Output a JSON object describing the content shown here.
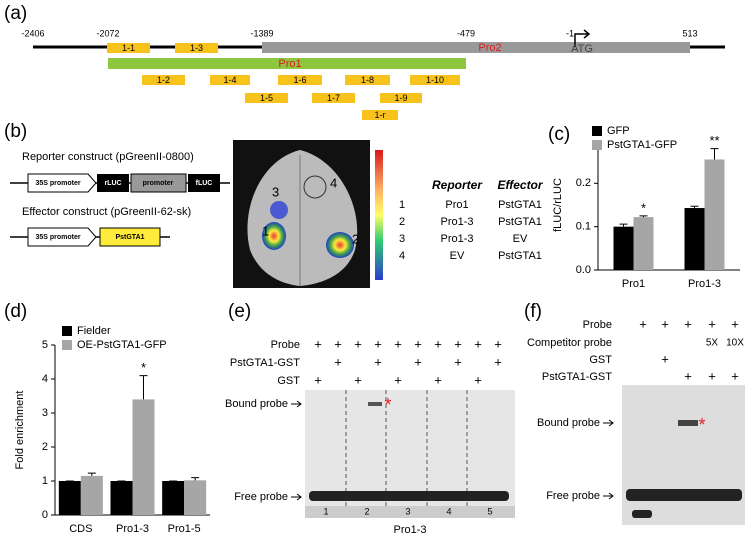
{
  "panels": [
    "(a)",
    "(b)",
    "(c)",
    "(d)",
    "(e)",
    "(f)"
  ],
  "a": {
    "positions": [
      "-2406",
      "-2072",
      "-1389",
      "-479",
      "-1",
      "513"
    ],
    "pro1": "Pro1",
    "pro2": "Pro2",
    "atg": "ATG",
    "fragments": [
      "1-1",
      "1-3",
      "1-2",
      "1-4",
      "1-6",
      "1-8",
      "1-10",
      "1-5",
      "1-7",
      "1-9",
      "1-r"
    ]
  },
  "b": {
    "reporter_title": "Reporter construct (pGreenII-0800)",
    "reporter_parts": [
      "35S promoter",
      "rLUC",
      "promoter",
      "fLUC"
    ],
    "effector_title": "Effector construct (pGreenII-62-sk)",
    "effector_parts": [
      "35S promoter",
      "PstGTA1"
    ],
    "leaf_labels": [
      "1",
      "2",
      "3",
      "4"
    ],
    "table": {
      "header": [
        "Reporter",
        "Effector"
      ],
      "rows": [
        [
          "1",
          "Pro1",
          "PstGTA1"
        ],
        [
          "2",
          "Pro1-3",
          "PstGTA1"
        ],
        [
          "3",
          "Pro1-3",
          "EV"
        ],
        [
          "4",
          "EV",
          "PstGTA1"
        ]
      ]
    }
  },
  "chart_data": [
    {
      "type": "bar",
      "ylabel": "fLUC/rLUC",
      "categories": [
        "Pro1",
        "Pro1-3"
      ],
      "series": [
        {
          "name": "GFP",
          "color": "#000000",
          "values": [
            0.1,
            0.143
          ],
          "errors": [
            0.006,
            0.004
          ],
          "significance": [
            null,
            null
          ]
        },
        {
          "name": "PstGTA1-GFP",
          "color": "#a6a6a6",
          "values": [
            0.122,
            0.255
          ],
          "errors": [
            0.003,
            0.025
          ],
          "significance": [
            "*",
            "**"
          ]
        }
      ],
      "ylim": [
        0,
        0.3
      ],
      "yticks": [
        {
          "value": 0,
          "label": "0.0"
        },
        0.1,
        0.2
      ],
      "legend": "top-left"
    },
    {
      "type": "bar",
      "ylabel": "Fold enrichment",
      "categories": [
        "CDS",
        "Pro1-3",
        "Pro1-5"
      ],
      "series": [
        {
          "name": "Fielder",
          "color": "#000000",
          "values": [
            1,
            1,
            1
          ],
          "errors": [
            0,
            0,
            0
          ],
          "significance": [
            null,
            null,
            null
          ]
        },
        {
          "name": "OE-PstGTA1-GFP",
          "color": "#a6a6a6",
          "values": [
            1.15,
            3.4,
            1.02
          ],
          "errors": [
            0.08,
            0.7,
            0.08
          ],
          "significance": [
            null,
            "*",
            null
          ]
        }
      ],
      "ylim": [
        0,
        5
      ],
      "yticks": [
        0,
        1,
        2,
        3,
        4,
        5
      ],
      "legend": "top-left"
    }
  ],
  "e": {
    "rows": [
      {
        "label": "Probe",
        "marks": [
          "+",
          "+",
          "+",
          "+",
          "+",
          "+",
          "+",
          "+",
          "+",
          "+"
        ]
      },
      {
        "label": "PstGTA1-GST",
        "marks": [
          null,
          "+",
          null,
          "+",
          null,
          "+",
          null,
          "+",
          null,
          "+"
        ]
      },
      {
        "label": "GST",
        "marks": [
          "+",
          null,
          "+",
          null,
          "+",
          null,
          "+",
          null,
          "+",
          null
        ]
      }
    ],
    "bound": "Bound probe",
    "free": "Free probe",
    "star": "*",
    "lanes": [
      "1",
      "2",
      "3",
      "4",
      "5"
    ],
    "probe_name": "Pro1-3"
  },
  "f": {
    "rows": [
      {
        "label": "Probe",
        "marks": [
          "+",
          "+",
          "+",
          "+",
          "+"
        ]
      },
      {
        "label": "Competitor probe",
        "marks": [
          null,
          null,
          null,
          "5X",
          "10X"
        ]
      },
      {
        "label": "GST",
        "marks": [
          null,
          "+",
          null,
          null,
          null
        ]
      },
      {
        "label": "PstGTA1-GST",
        "marks": [
          null,
          null,
          "+",
          "+",
          "+"
        ]
      }
    ],
    "bound": "Bound probe",
    "free": "Free probe",
    "star": "*"
  }
}
